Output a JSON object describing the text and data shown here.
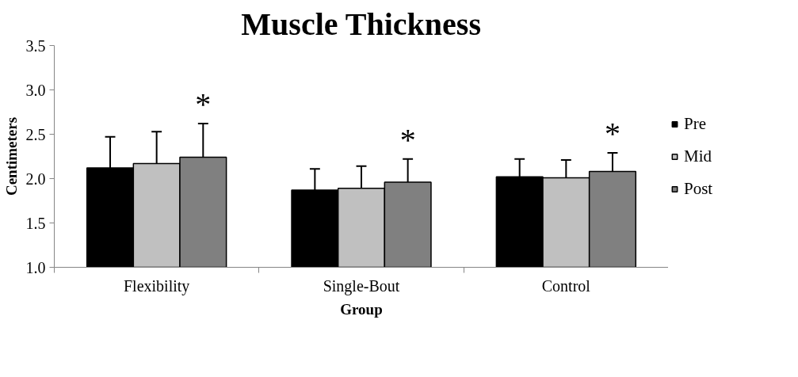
{
  "chart_data": {
    "type": "bar",
    "title": "Muscle Thickness",
    "xlabel": "Group",
    "ylabel": "Centimeters",
    "categories": [
      "Flexibility",
      "Single-Bout",
      "Control"
    ],
    "series": [
      {
        "name": "Pre",
        "color": "#000000",
        "values": [
          2.12,
          1.87,
          2.02
        ],
        "errors": [
          [
            2.12,
            2.47
          ],
          [
            1.87,
            2.11
          ],
          [
            2.02,
            2.22
          ]
        ]
      },
      {
        "name": "Mid",
        "color": "#c0c0c0",
        "values": [
          2.17,
          1.89,
          2.01
        ],
        "errors": [
          [
            2.17,
            2.53
          ],
          [
            1.89,
            2.14
          ],
          [
            2.01,
            2.21
          ]
        ]
      },
      {
        "name": "Post",
        "color": "#808080",
        "values": [
          2.24,
          1.96,
          2.08
        ],
        "errors": [
          [
            2.24,
            2.62
          ],
          [
            1.96,
            2.22
          ],
          [
            2.08,
            2.29
          ]
        ]
      }
    ],
    "ylim": [
      1.0,
      3.5
    ],
    "yticks": [
      {
        "value": 1.0,
        "label": "1.0"
      },
      {
        "value": 1.5,
        "label": "1.5"
      },
      {
        "value": 2.0,
        "label": "2.0"
      },
      {
        "value": 2.5,
        "label": "2.5"
      },
      {
        "value": 3.0,
        "label": "3.0"
      },
      {
        "value": 3.5,
        "label": "3.5"
      }
    ],
    "grid": false,
    "legend": "right",
    "annotations": [
      "*",
      "*",
      "*"
    ]
  }
}
